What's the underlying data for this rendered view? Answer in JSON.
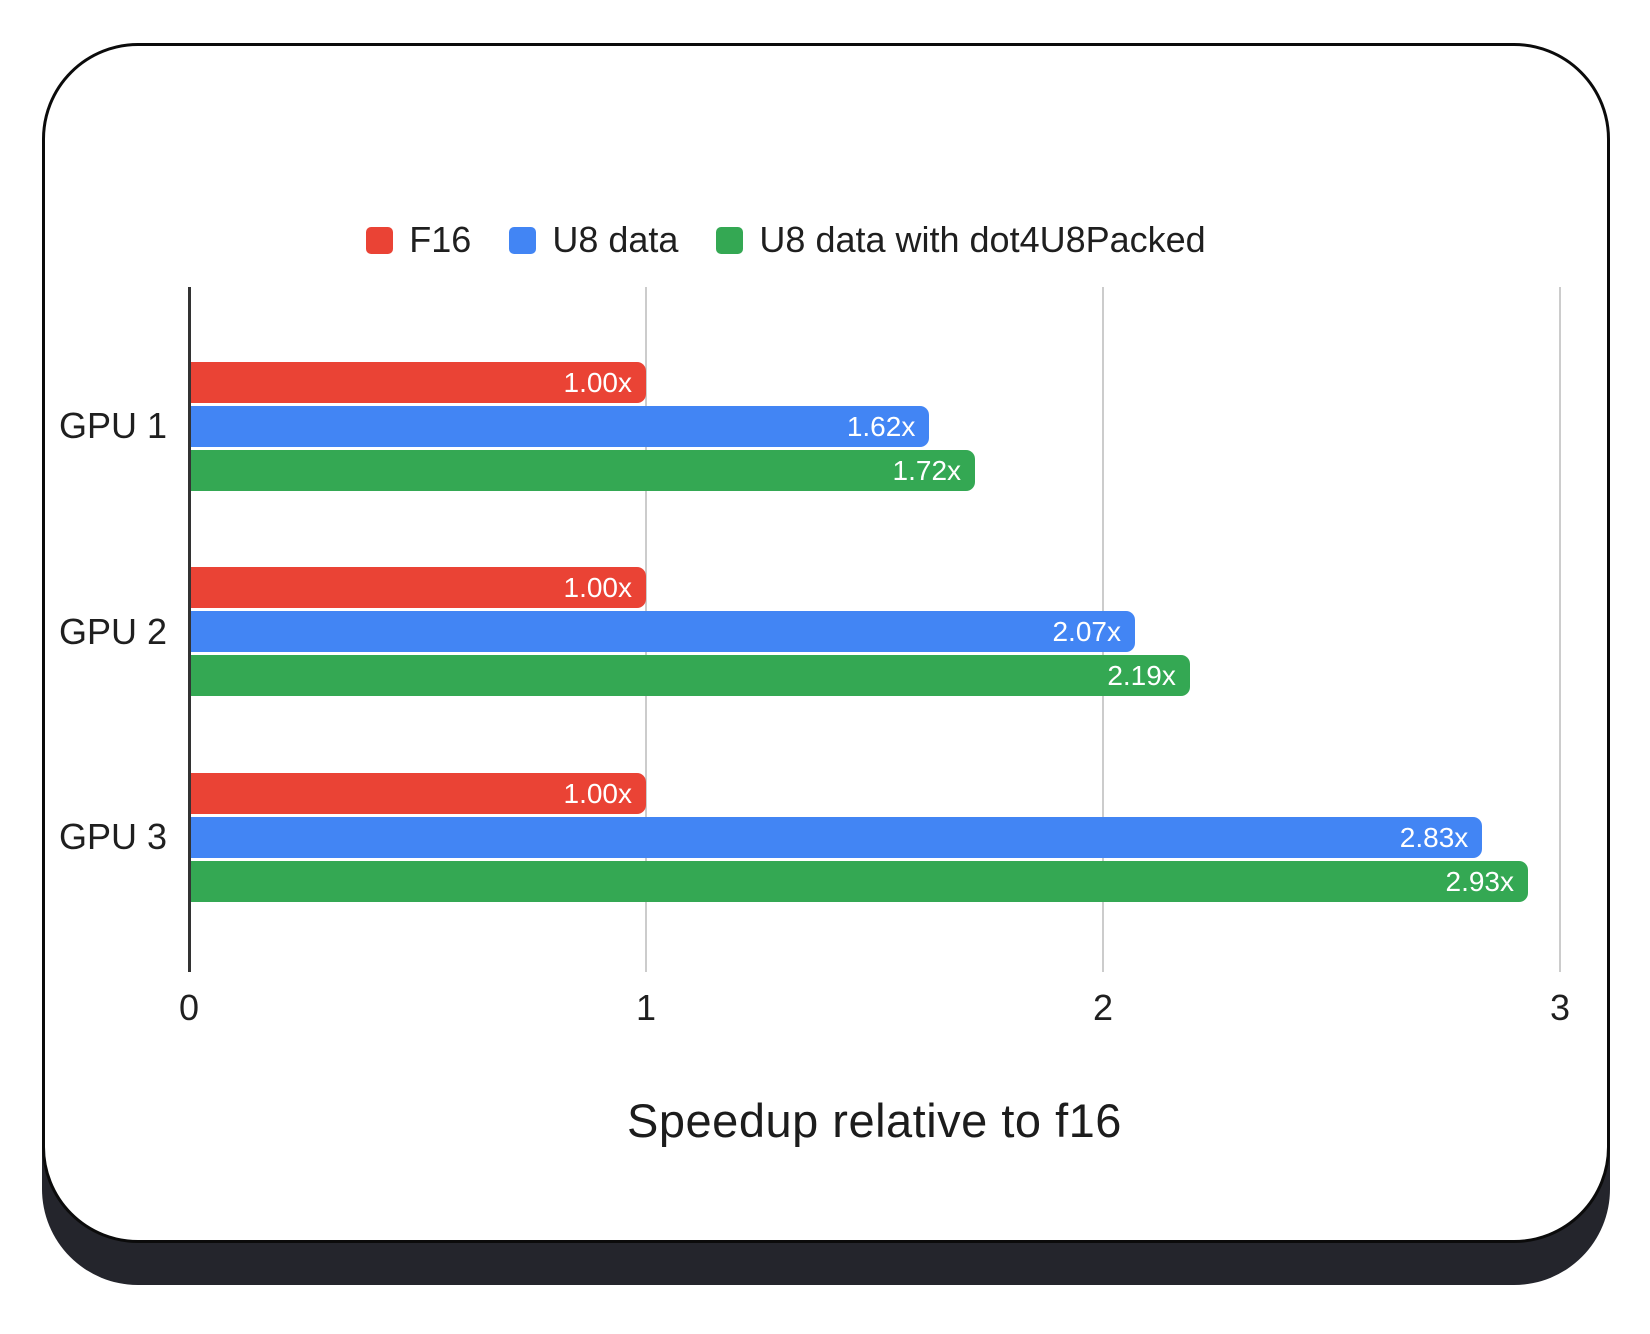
{
  "card": {
    "background": "#ffffff",
    "border_color": "#0b0b0b",
    "shadow_color": "#24252c"
  },
  "styles": {
    "axis_color": "#333333",
    "gridline_color": "#cccccc",
    "text_color": "#1f1f1f",
    "bar_label_color": "#ffffff"
  },
  "chart_data": {
    "type": "bar",
    "orientation": "horizontal",
    "xlabel": "Speedup relative to f16",
    "xlim": [
      0,
      3
    ],
    "xticks": [
      "0",
      "1",
      "2",
      "3"
    ],
    "grid": true,
    "legend_position": "top",
    "categories": [
      "GPU 1",
      "GPU 2",
      "GPU 3"
    ],
    "series": [
      {
        "name": "F16",
        "color": "#EA4335",
        "values": [
          1.0,
          1.0,
          1.0
        ],
        "bar_labels": [
          "1.00x",
          "1.00x",
          "1.00x"
        ]
      },
      {
        "name": "U8 data",
        "color": "#4285F4",
        "values": [
          1.62,
          2.07,
          2.83
        ],
        "bar_labels": [
          "1.62x",
          "2.07x",
          "2.83x"
        ]
      },
      {
        "name": "U8 data with dot4U8Packed",
        "color": "#34A853",
        "values": [
          1.72,
          2.19,
          2.93
        ],
        "bar_labels": [
          "1.72x",
          "2.19x",
          "2.93x"
        ]
      }
    ]
  }
}
